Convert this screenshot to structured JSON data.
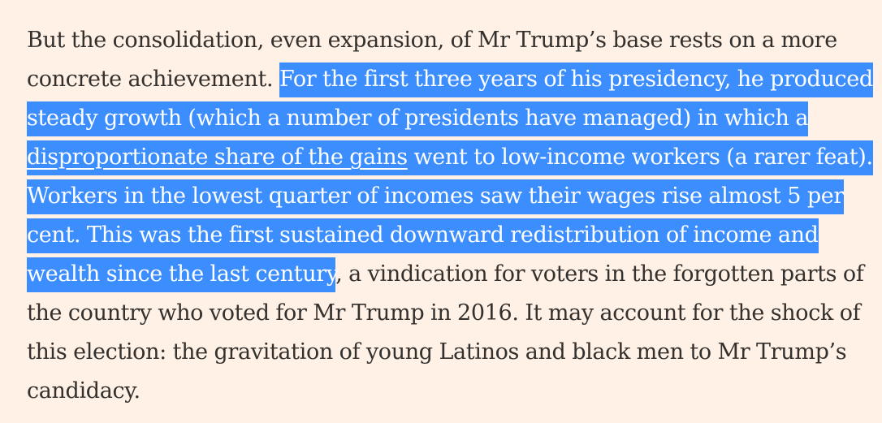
{
  "article": {
    "paragraph": {
      "line1": "But the consolidation, even expansion, of Mr Trump’s base rests on a more",
      "line2_plain": "concrete achievement. ",
      "line2_sel": "For the first three years of his presidency, he produced",
      "line3_sel": "steady growth (which a number of presidents have managed) in which a",
      "line4_link": "disproportionate share of the gains",
      "line4_sel": " went to low-income workers (a rarer feat).",
      "line5_sel": "Workers in the lowest quarter of incomes saw their wages rise almost 5 per",
      "line6_sel": "cent. This was the first sustained downward redistribution of income and",
      "line7_sel": "wealth since the last century",
      "line7_plain": ", a vindication for voters in the forgotten parts of",
      "line8": "the country who voted for Mr Trump in 2016. It may account for the shock of",
      "line9": "this election: the gravitation of young Latinos and black men to Mr Trump’s",
      "line10": "candidacy."
    },
    "colors": {
      "background": "#fff1e5",
      "text": "#33302e",
      "selection": "#3c8eff",
      "selection_text": "#ffffff"
    }
  }
}
